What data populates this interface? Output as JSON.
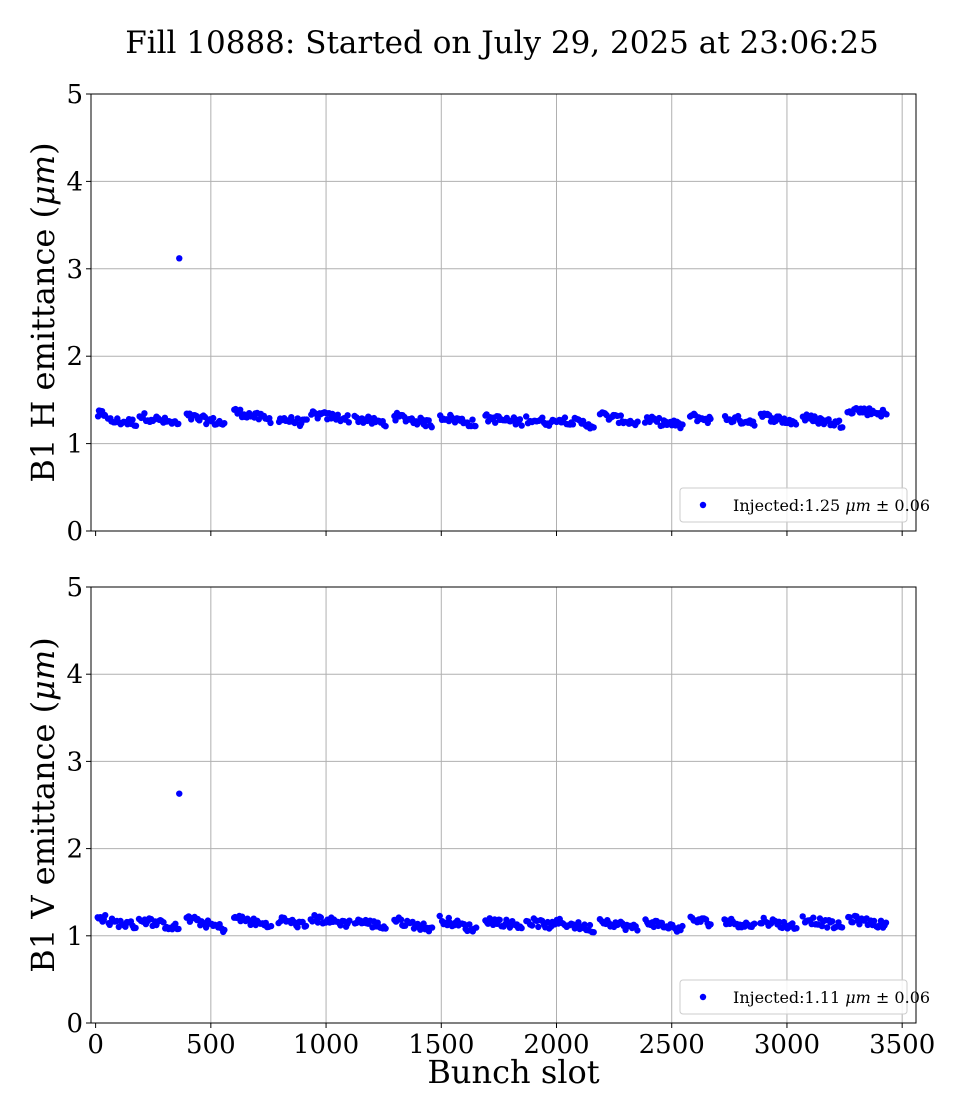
{
  "figure": {
    "title": "Fill 10888: Started on July 29, 2025 at 23:06:25"
  },
  "chart_data": [
    {
      "type": "scatter",
      "panel": "top",
      "title": "",
      "ylabel_main": "B1 H emittance (",
      "ylabel_unit": "μm",
      "ylabel_close": ")",
      "xlabel": "",
      "xlim": [
        -20,
        3560
      ],
      "ylim": [
        0,
        5
      ],
      "xticks": [
        0,
        500,
        1000,
        1500,
        2000,
        2500,
        3000,
        3500
      ],
      "yticks": [
        0,
        1,
        2,
        3,
        4,
        5
      ],
      "xtick_labels_visible": false,
      "grid": true,
      "legend_position": "lower-right",
      "legend": {
        "prefix": "Injected:1.25 ",
        "unit": "μm",
        "suffix": " ± 0.06"
      },
      "marker_color": "#0000ff",
      "outliers": [
        {
          "x": 363,
          "y": 3.12
        }
      ],
      "bunch_trains": [
        {
          "x_start": 10,
          "x_end": 40,
          "level": 1.34,
          "trend": 0.02
        },
        {
          "x_start": 55,
          "x_end": 175,
          "level": 1.25,
          "trend": -0.02
        },
        {
          "x_start": 190,
          "x_end": 360,
          "level": 1.27,
          "trend": -0.1
        },
        {
          "x_start": 395,
          "x_end": 560,
          "level": 1.27,
          "trend": -0.08
        },
        {
          "x_start": 600,
          "x_end": 760,
          "level": 1.32,
          "trend": -0.1
        },
        {
          "x_start": 795,
          "x_end": 915,
          "level": 1.26,
          "trend": -0.06
        },
        {
          "x_start": 935,
          "x_end": 1100,
          "level": 1.31,
          "trend": -0.05
        },
        {
          "x_start": 1125,
          "x_end": 1260,
          "level": 1.26,
          "trend": -0.06
        },
        {
          "x_start": 1295,
          "x_end": 1460,
          "level": 1.27,
          "trend": -0.09
        },
        {
          "x_start": 1495,
          "x_end": 1650,
          "level": 1.27,
          "trend": -0.09
        },
        {
          "x_start": 1690,
          "x_end": 1850,
          "level": 1.27,
          "trend": -0.05
        },
        {
          "x_start": 1870,
          "x_end": 1990,
          "level": 1.26,
          "trend": -0.04
        },
        {
          "x_start": 2000,
          "x_end": 2160,
          "level": 1.25,
          "trend": -0.08
        },
        {
          "x_start": 2190,
          "x_end": 2350,
          "level": 1.28,
          "trend": -0.1
        },
        {
          "x_start": 2385,
          "x_end": 2545,
          "level": 1.24,
          "trend": -0.07
        },
        {
          "x_start": 2580,
          "x_end": 2670,
          "level": 1.29,
          "trend": -0.04
        },
        {
          "x_start": 2730,
          "x_end": 2860,
          "level": 1.27,
          "trend": -0.04
        },
        {
          "x_start": 2885,
          "x_end": 3040,
          "level": 1.28,
          "trend": -0.08
        },
        {
          "x_start": 3070,
          "x_end": 3240,
          "level": 1.26,
          "trend": -0.08
        },
        {
          "x_start": 3265,
          "x_end": 3430,
          "level": 1.37,
          "trend": -0.05
        }
      ]
    },
    {
      "type": "scatter",
      "panel": "bottom",
      "title": "",
      "ylabel_main": "B1 V emittance (",
      "ylabel_unit": "μm",
      "ylabel_close": ")",
      "xlabel": "Bunch slot",
      "xlim": [
        -20,
        3560
      ],
      "ylim": [
        0,
        5
      ],
      "xticks": [
        0,
        500,
        1000,
        1500,
        2000,
        2500,
        3000,
        3500
      ],
      "yticks": [
        0,
        1,
        2,
        3,
        4,
        5
      ],
      "xtick_labels_visible": true,
      "grid": true,
      "legend_position": "lower-right",
      "legend": {
        "prefix": "Injected:1.11 ",
        "unit": "μm",
        "suffix": " ± 0.06"
      },
      "marker_color": "#0000ff",
      "outliers": [
        {
          "x": 363,
          "y": 2.63
        }
      ],
      "bunch_trains": [
        {
          "x_start": 10,
          "x_end": 40,
          "level": 1.2,
          "trend": 0.02
        },
        {
          "x_start": 55,
          "x_end": 175,
          "level": 1.14,
          "trend": -0.04
        },
        {
          "x_start": 190,
          "x_end": 360,
          "level": 1.14,
          "trend": -0.1
        },
        {
          "x_start": 395,
          "x_end": 560,
          "level": 1.14,
          "trend": -0.12
        },
        {
          "x_start": 600,
          "x_end": 760,
          "level": 1.16,
          "trend": -0.1
        },
        {
          "x_start": 795,
          "x_end": 915,
          "level": 1.15,
          "trend": -0.08
        },
        {
          "x_start": 935,
          "x_end": 1100,
          "level": 1.17,
          "trend": -0.06
        },
        {
          "x_start": 1125,
          "x_end": 1260,
          "level": 1.14,
          "trend": -0.08
        },
        {
          "x_start": 1295,
          "x_end": 1460,
          "level": 1.13,
          "trend": -0.1
        },
        {
          "x_start": 1495,
          "x_end": 1650,
          "level": 1.13,
          "trend": -0.12
        },
        {
          "x_start": 1690,
          "x_end": 1850,
          "level": 1.15,
          "trend": -0.07
        },
        {
          "x_start": 1870,
          "x_end": 1990,
          "level": 1.14,
          "trend": -0.06
        },
        {
          "x_start": 2000,
          "x_end": 2160,
          "level": 1.12,
          "trend": -0.08
        },
        {
          "x_start": 2190,
          "x_end": 2350,
          "level": 1.13,
          "trend": -0.1
        },
        {
          "x_start": 2385,
          "x_end": 2545,
          "level": 1.12,
          "trend": -0.09
        },
        {
          "x_start": 2580,
          "x_end": 2670,
          "level": 1.17,
          "trend": -0.04
        },
        {
          "x_start": 2730,
          "x_end": 2860,
          "level": 1.14,
          "trend": -0.06
        },
        {
          "x_start": 2885,
          "x_end": 3040,
          "level": 1.14,
          "trend": -0.08
        },
        {
          "x_start": 3070,
          "x_end": 3240,
          "level": 1.15,
          "trend": -0.1
        },
        {
          "x_start": 3265,
          "x_end": 3430,
          "level": 1.16,
          "trend": -0.08
        }
      ]
    }
  ]
}
